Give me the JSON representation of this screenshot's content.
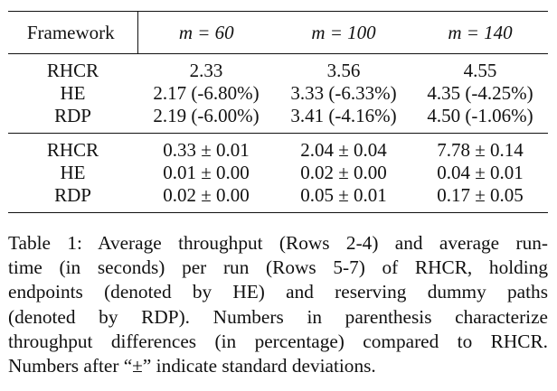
{
  "table": {
    "header": {
      "framework": "Framework",
      "col1": "m = 60",
      "col2": "m = 100",
      "col3": "m = 140"
    },
    "throughput_rows": [
      {
        "label": "RHCR",
        "m60": "2.33",
        "m100": "3.56",
        "m140": "4.55"
      },
      {
        "label": "HE",
        "m60": "2.17 (-6.80%)",
        "m100": "3.33 (-6.33%)",
        "m140": "4.35 (-4.25%)"
      },
      {
        "label": "RDP",
        "m60": "2.19 (-6.00%)",
        "m100": "3.41 (-4.16%)",
        "m140": "4.50 (-1.06%)"
      }
    ],
    "runtime_rows": [
      {
        "label": "RHCR",
        "m60": "0.33 ± 0.01",
        "m100": "2.04 ± 0.04",
        "m140": "7.78 ± 0.14"
      },
      {
        "label": "HE",
        "m60": "0.01 ± 0.00",
        "m100": "0.02 ± 0.00",
        "m140": "0.04 ± 0.01"
      },
      {
        "label": "RDP",
        "m60": "0.02 ± 0.00",
        "m100": "0.05 ± 0.01",
        "m140": "0.17 ± 0.05"
      }
    ]
  },
  "caption": {
    "lines": [
      "Table 1: Average throughput (Rows 2-4) and average run-",
      "time (in seconds) per run (Rows 5-7) of RHCR, holding",
      "endpoints (denoted by HE) and reserving dummy paths",
      "(denoted by RDP). Numbers in parenthesis characterize",
      "throughput differences (in percentage) compared to RHCR.",
      "Numbers after “±” indicate standard deviations."
    ]
  }
}
